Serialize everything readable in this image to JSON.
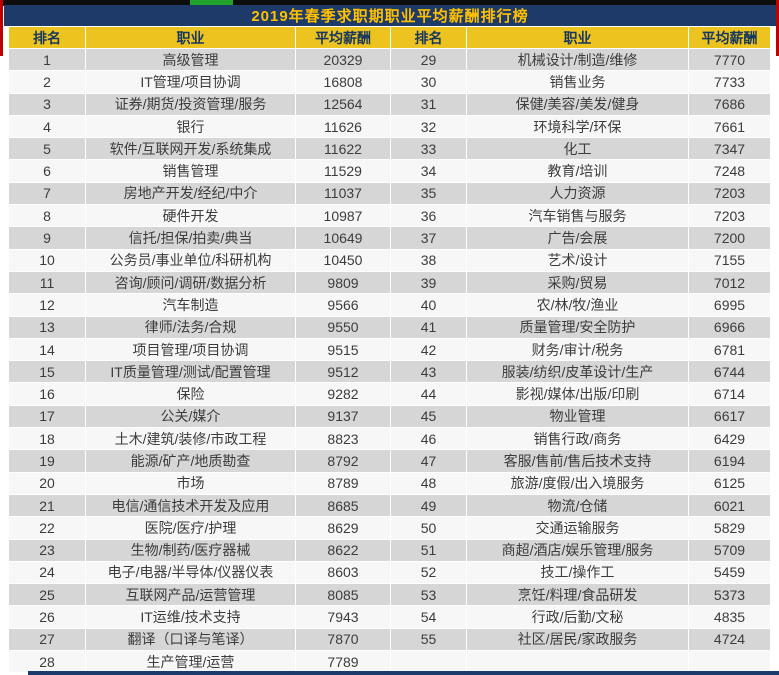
{
  "title": "2019年春季求职期职业平均薪酬排行榜",
  "chart_data": {
    "type": "table",
    "title": "2019年春季求职期职业平均薪酬排行榜",
    "columns": [
      "排名",
      "职业",
      "平均薪酬",
      "排名",
      "职业",
      "平均薪酬"
    ],
    "left_rows": [
      [
        1,
        "高级管理",
        20329
      ],
      [
        2,
        "IT管理/项目协调",
        16808
      ],
      [
        3,
        "证券/期货/投资管理/服务",
        12564
      ],
      [
        4,
        "银行",
        11626
      ],
      [
        5,
        "软件/互联网开发/系统集成",
        11622
      ],
      [
        6,
        "销售管理",
        11529
      ],
      [
        7,
        "房地产开发/经纪/中介",
        11037
      ],
      [
        8,
        "硬件开发",
        10987
      ],
      [
        9,
        "信托/担保/拍卖/典当",
        10649
      ],
      [
        10,
        "公务员/事业单位/科研机构",
        10450
      ],
      [
        11,
        "咨询/顾问/调研/数据分析",
        9809
      ],
      [
        12,
        "汽车制造",
        9566
      ],
      [
        13,
        "律师/法务/合规",
        9550
      ],
      [
        14,
        "项目管理/项目协调",
        9515
      ],
      [
        15,
        "IT质量管理/测试/配置管理",
        9512
      ],
      [
        16,
        "保险",
        9282
      ],
      [
        17,
        "公关/媒介",
        9137
      ],
      [
        18,
        "土木/建筑/装修/市政工程",
        8823
      ],
      [
        19,
        "能源/矿产/地质勘查",
        8792
      ],
      [
        20,
        "市场",
        8789
      ],
      [
        21,
        "电信/通信技术开发及应用",
        8685
      ],
      [
        22,
        "医院/医疗/护理",
        8629
      ],
      [
        23,
        "生物/制药/医疗器械",
        8622
      ],
      [
        24,
        "电子/电器/半导体/仪器仪表",
        8603
      ],
      [
        25,
        "互联网产品/运营管理",
        8085
      ],
      [
        26,
        "IT运维/技术支持",
        7943
      ],
      [
        27,
        "翻译（口译与笔译）",
        7870
      ],
      [
        28,
        "生产管理/运营",
        7789
      ]
    ],
    "right_rows": [
      [
        29,
        "机械设计/制造/维修",
        7770
      ],
      [
        30,
        "销售业务",
        7733
      ],
      [
        31,
        "保健/美容/美发/健身",
        7686
      ],
      [
        32,
        "环境科学/环保",
        7661
      ],
      [
        33,
        "化工",
        7347
      ],
      [
        34,
        "教育/培训",
        7248
      ],
      [
        35,
        "人力资源",
        7203
      ],
      [
        36,
        "汽车销售与服务",
        7203
      ],
      [
        37,
        "广告/会展",
        7200
      ],
      [
        38,
        "艺术/设计",
        7155
      ],
      [
        39,
        "采购/贸易",
        7012
      ],
      [
        40,
        "农/林/牧/渔业",
        6995
      ],
      [
        41,
        "质量管理/安全防护",
        6966
      ],
      [
        42,
        "财务/审计/税务",
        6781
      ],
      [
        43,
        "服装/纺织/皮革设计/生产",
        6744
      ],
      [
        44,
        "影视/媒体/出版/印刷",
        6714
      ],
      [
        45,
        "物业管理",
        6617
      ],
      [
        46,
        "销售行政/商务",
        6429
      ],
      [
        47,
        "客服/售前/售后技术支持",
        6194
      ],
      [
        48,
        "旅游/度假/出入境服务",
        6125
      ],
      [
        49,
        "物流/仓储",
        6021
      ],
      [
        50,
        "交通运输服务",
        5829
      ],
      [
        51,
        "商超/酒店/娱乐管理/服务",
        5709
      ],
      [
        52,
        "技工/操作工",
        5459
      ],
      [
        53,
        "烹饪/料理/食品研发",
        5373
      ],
      [
        54,
        "行政/后勤/文秘",
        4835
      ],
      [
        55,
        "社区/居民/家政服务",
        4724
      ]
    ],
    "layout": {
      "row_striping": "odd-gray-even-white",
      "grid": "white 1px separators",
      "last_left_row_clipped": true
    }
  },
  "colors": {
    "title_bg": "#1e3a68",
    "title_text": "#ffc000",
    "header_bg": "#edc320",
    "header_text": "#17375e",
    "row_odd_bg": "#d6d6d6",
    "row_even_bg": "#f7f7f7",
    "cell_text": "#3c3c3c",
    "top_strip": "#0d0d0d",
    "green_accent": "#22a32b",
    "red_border": "#c00000",
    "bottom_line": "#1a3b6b"
  }
}
